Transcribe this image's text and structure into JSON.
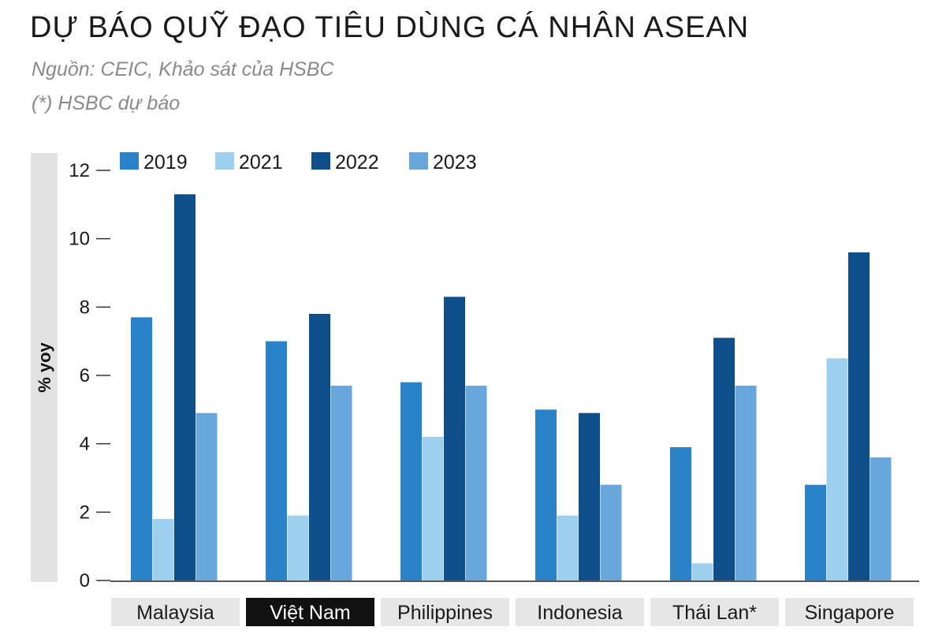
{
  "title": "DỰ BÁO QUỸ ĐẠO TIÊU DÙNG CÁ NHÂN ASEAN",
  "source": "Nguồn:  CEIC, Khảo sát của HSBC",
  "note": "(*) HSBC dự báo",
  "chart_data": {
    "type": "bar",
    "ylabel": "% yoy",
    "ylim": [
      0,
      12
    ],
    "yticks": [
      "0",
      "2",
      "4",
      "6",
      "8",
      "10",
      "12"
    ],
    "legend_position": "top",
    "categories": [
      "Malaysia",
      "Việt Nam",
      "Philippines",
      "Indonesia",
      "Thái Lan*",
      "Singapore"
    ],
    "highlight_category": "Việt Nam",
    "series": [
      {
        "name": "2019",
        "color": "#2a82c9",
        "values": [
          7.7,
          7.0,
          5.8,
          5.0,
          3.9,
          2.8
        ]
      },
      {
        "name": "2021",
        "color": "#9fcff0",
        "values": [
          1.8,
          1.9,
          4.2,
          1.9,
          0.5,
          6.5
        ]
      },
      {
        "name": "2022",
        "color": "#0e4f8a",
        "values": [
          11.3,
          7.8,
          8.3,
          4.9,
          7.1,
          9.6
        ]
      },
      {
        "name": "2023",
        "color": "#68a7dc",
        "values": [
          4.9,
          5.7,
          5.7,
          2.8,
          5.7,
          3.6
        ]
      }
    ]
  }
}
